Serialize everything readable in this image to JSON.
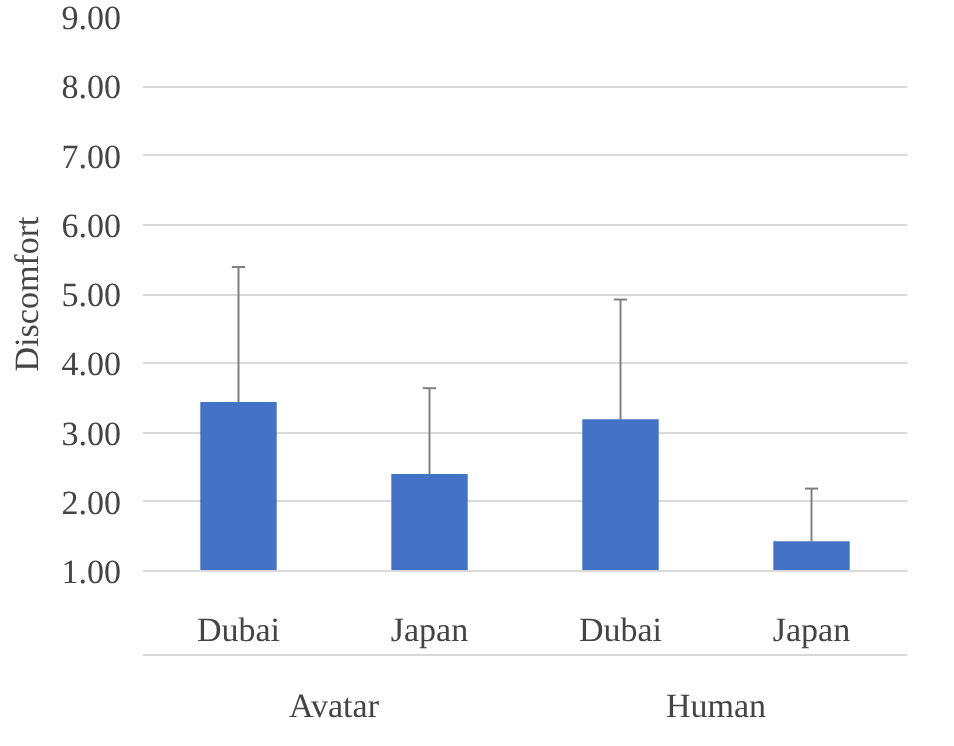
{
  "chart_data": {
    "type": "bar",
    "ylabel": "Discomfort",
    "categories": [
      "Dubai",
      "Japan",
      "Dubai",
      "Japan"
    ],
    "values": [
      3.44,
      2.4,
      3.19,
      1.43
    ],
    "color": "#4472c4",
    "errors": [
      [
        3.44,
        5.39
      ],
      [
        2.4,
        3.64
      ],
      [
        3.19,
        4.92
      ],
      [
        1.43,
        2.19
      ]
    ],
    "ylim": [
      1,
      9
    ],
    "yticks": [
      {
        "value": 1,
        "label": "1.00"
      },
      {
        "value": 2,
        "label": "2.00"
      },
      {
        "value": 3,
        "label": "3.00"
      },
      {
        "value": 4,
        "label": "4.00"
      },
      {
        "value": 5,
        "label": "5.00"
      },
      {
        "value": 6,
        "label": "6.00"
      },
      {
        "value": 7,
        "label": "7.00"
      },
      {
        "value": 8,
        "label": "8.00"
      },
      {
        "value": 9,
        "label": "9.00"
      }
    ],
    "grid": "y",
    "annotations": [
      "Avatar",
      "Human"
    ]
  }
}
